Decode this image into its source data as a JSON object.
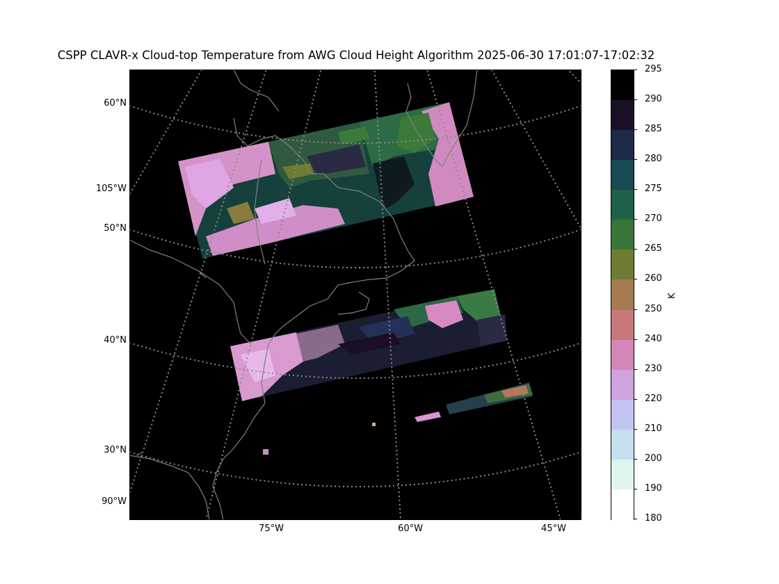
{
  "title": "CSPP CLAVR-x Cloud-top Temperature from AWG Cloud Height Algorithm 2025-06-30 17:01:07-17:02:32",
  "map": {
    "background": "#000000",
    "coastline_color": "#808080",
    "gridline_color": "#8c8c8c",
    "lat_labels": [
      "60°N",
      "105°W",
      "50°N",
      "40°N",
      "30°N",
      "90°W"
    ],
    "lon_labels": [
      "75°W",
      "60°W",
      "45°W"
    ]
  },
  "colorbar": {
    "unit": "K",
    "ticks": [
      "295",
      "290",
      "285",
      "280",
      "275",
      "270",
      "265",
      "260",
      "250",
      "240",
      "230",
      "220",
      "210",
      "200",
      "190",
      "180"
    ],
    "colors": [
      "#000000",
      "#1c1026",
      "#1e2a4a",
      "#174a52",
      "#1d6248",
      "#397537",
      "#6e7c33",
      "#a57a4e",
      "#c8787a",
      "#d486b8",
      "#cfa2e0",
      "#c3c3f3",
      "#c6e0f0",
      "#dff4ef",
      "#ffffff"
    ]
  }
}
